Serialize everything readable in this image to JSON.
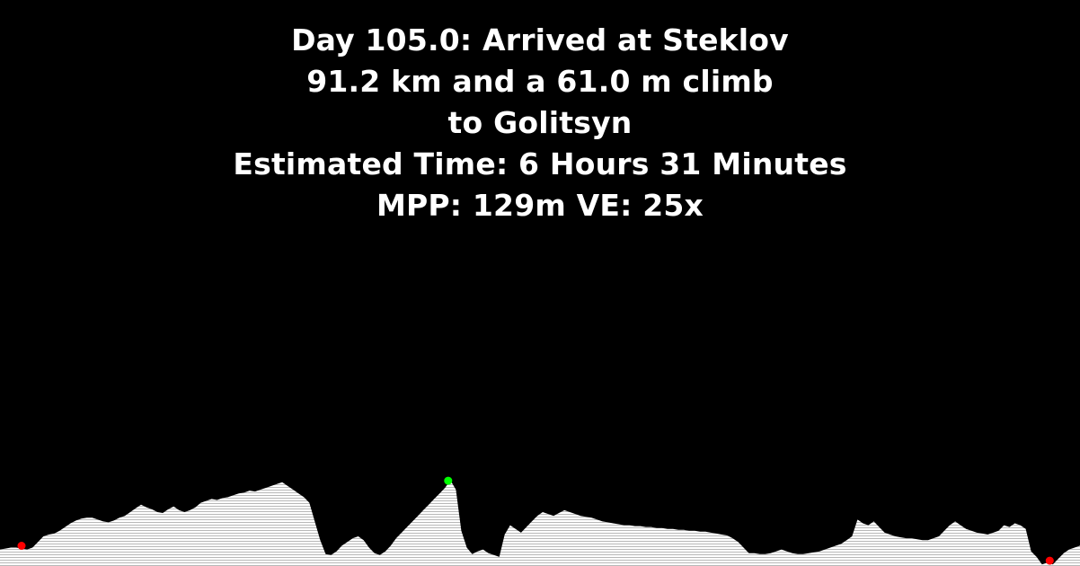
{
  "header": {
    "lines": [
      "Day 105.0: Arrived at Steklov",
      "91.2 km and a 61.0 m climb",
      "to Golitsyn",
      "Estimated Time: 6 Hours 31 Minutes",
      "MPP: 129m VE: 25x"
    ]
  },
  "profile": {
    "fill_color": "#ffffff",
    "hatch_color": "#b8b8b8",
    "elevation": [
      0.1,
      0.11,
      0.12,
      0.12,
      0.11,
      0.1,
      0.12,
      0.18,
      0.24,
      0.26,
      0.27,
      0.3,
      0.34,
      0.38,
      0.41,
      0.43,
      0.44,
      0.44,
      0.42,
      0.4,
      0.39,
      0.41,
      0.44,
      0.46,
      0.5,
      0.54,
      0.58,
      0.55,
      0.53,
      0.5,
      0.49,
      0.53,
      0.56,
      0.52,
      0.5,
      0.52,
      0.55,
      0.6,
      0.62,
      0.64,
      0.63,
      0.65,
      0.66,
      0.68,
      0.7,
      0.71,
      0.73,
      0.72,
      0.74,
      0.76,
      0.78,
      0.8,
      0.82,
      0.78,
      0.74,
      0.7,
      0.66,
      0.6,
      0.4,
      0.2,
      0.05,
      0.04,
      0.08,
      0.14,
      0.18,
      0.22,
      0.24,
      0.2,
      0.12,
      0.06,
      0.04,
      0.08,
      0.14,
      0.22,
      0.28,
      0.34,
      0.4,
      0.46,
      0.52,
      0.58,
      0.64,
      0.7,
      0.76,
      0.84,
      0.74,
      0.3,
      0.12,
      0.05,
      0.08,
      0.1,
      0.06,
      0.04,
      0.02,
      0.26,
      0.36,
      0.32,
      0.28,
      0.34,
      0.4,
      0.46,
      0.5,
      0.48,
      0.46,
      0.49,
      0.52,
      0.5,
      0.48,
      0.46,
      0.45,
      0.44,
      0.42,
      0.4,
      0.39,
      0.38,
      0.37,
      0.36,
      0.36,
      0.35,
      0.35,
      0.34,
      0.34,
      0.33,
      0.33,
      0.32,
      0.32,
      0.31,
      0.31,
      0.3,
      0.3,
      0.29,
      0.29,
      0.28,
      0.27,
      0.26,
      0.25,
      0.22,
      0.18,
      0.12,
      0.06,
      0.06,
      0.05,
      0.05,
      0.06,
      0.08,
      0.1,
      0.08,
      0.06,
      0.05,
      0.05,
      0.06,
      0.07,
      0.08,
      0.1,
      0.12,
      0.14,
      0.16,
      0.2,
      0.24,
      0.42,
      0.38,
      0.36,
      0.4,
      0.34,
      0.28,
      0.26,
      0.24,
      0.23,
      0.22,
      0.22,
      0.21,
      0.2,
      0.2,
      0.22,
      0.24,
      0.3,
      0.36,
      0.4,
      0.36,
      0.32,
      0.3,
      0.28,
      0.27,
      0.26,
      0.28,
      0.3,
      0.36,
      0.34,
      0.38,
      0.36,
      0.32,
      0.08,
      0.02,
      -0.06,
      -0.04,
      -0.06,
      0.0,
      0.06,
      0.1,
      0.12,
      0.14
    ],
    "markers": [
      {
        "name": "start-marker",
        "position": 0.02,
        "color": "#ff0000"
      },
      {
        "name": "current-marker",
        "position": 0.415,
        "color": "#00ff00"
      },
      {
        "name": "end-marker",
        "position": 0.972,
        "color": "#ff0000"
      }
    ]
  }
}
